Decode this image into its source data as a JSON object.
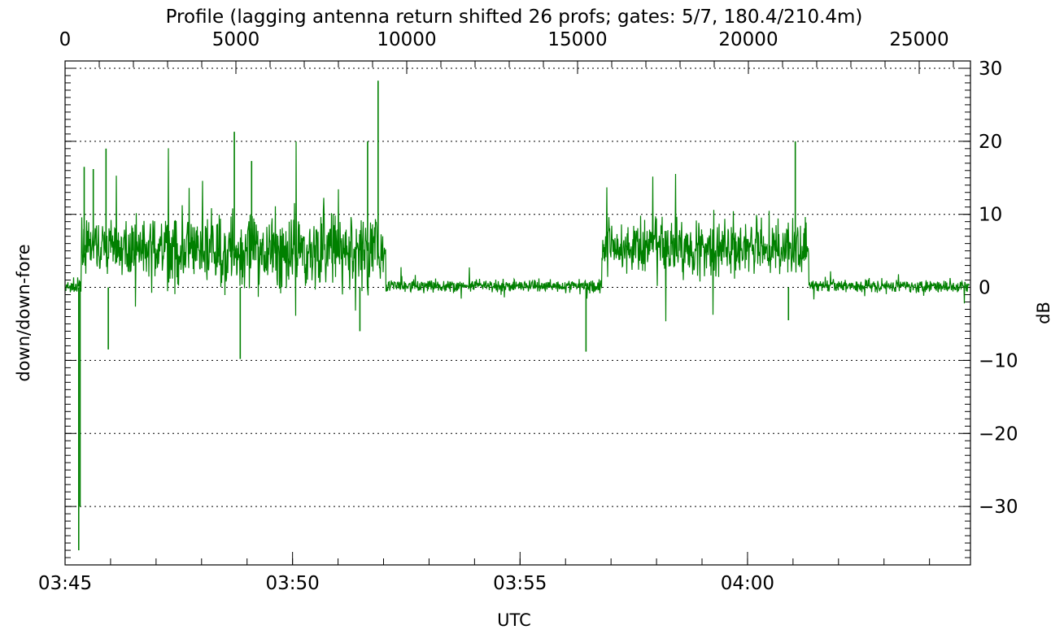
{
  "chart_data": {
    "type": "line",
    "top_axis_label": "Profile (lagging antenna return shifted 26 profs; gates: 5/7, 180.4/210.4m)",
    "ylabel_left": "down/down-fore",
    "ylabel_right": "dB",
    "xlabel": "UTC",
    "top_axis": {
      "range": [
        0,
        26500
      ],
      "ticks": [
        0,
        5000,
        10000,
        15000,
        20000,
        25000
      ],
      "tick_labels": [
        "0",
        "5000",
        "10000",
        "15000",
        "20000",
        "25000"
      ]
    },
    "x_axis": {
      "range_minutes": [
        0,
        19.9
      ],
      "ticks_minutes": [
        0,
        5,
        10,
        15
      ],
      "tick_labels": [
        "03:45",
        "03:50",
        "03:55",
        "04:00"
      ]
    },
    "y_axis": {
      "range": [
        -38,
        31
      ],
      "ticks": [
        30,
        20,
        10,
        0,
        -10,
        -20,
        -30
      ],
      "tick_labels": [
        "30",
        "20",
        "10",
        "0",
        "−10",
        "−20",
        "−30"
      ]
    },
    "grid": true,
    "line_color": "#008000",
    "series": [
      {
        "segments": [
          {
            "t0": 0.0,
            "t1": 0.3,
            "mean": 0.0,
            "noise": 1.2
          },
          {
            "t0": 0.35,
            "t1": 1.9,
            "mean": 5.5,
            "noise": 4.0
          },
          {
            "t0": 1.9,
            "t1": 7.0,
            "mean": 5.0,
            "noise": 6.0
          },
          {
            "t0": 7.05,
            "t1": 11.35,
            "mean": 0.2,
            "noise": 1.0
          },
          {
            "t0": 11.8,
            "t1": 16.3,
            "mean": 5.5,
            "noise": 4.5
          },
          {
            "t0": 16.35,
            "t1": 19.9,
            "mean": 0.2,
            "noise": 1.0
          }
        ],
        "peaks": [
          {
            "t": 0.3,
            "y": -36
          },
          {
            "t": 0.33,
            "y": -30
          },
          {
            "t": 0.42,
            "y": 16.5
          },
          {
            "t": 0.62,
            "y": 16.2
          },
          {
            "t": 0.95,
            "y": -8.5
          },
          {
            "t": 0.9,
            "y": 19.0
          },
          {
            "t": 3.72,
            "y": 21.3
          },
          {
            "t": 3.85,
            "y": -9.8
          },
          {
            "t": 6.65,
            "y": 20.0
          },
          {
            "t": 6.48,
            "y": -6.0
          },
          {
            "t": 6.88,
            "y": 28.3
          },
          {
            "t": 11.45,
            "y": -8.8
          },
          {
            "t": 16.05,
            "y": 20.0
          },
          {
            "t": 15.9,
            "y": -4.5
          },
          {
            "t": 4.1,
            "y": 17.3
          }
        ]
      }
    ]
  }
}
